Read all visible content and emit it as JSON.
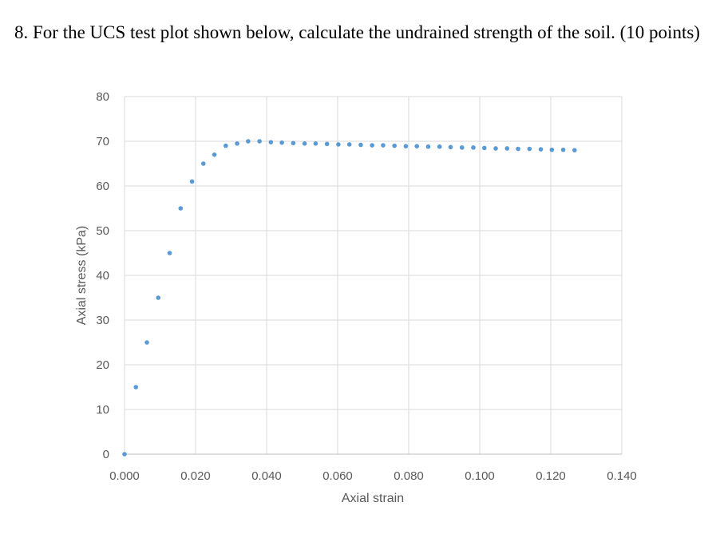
{
  "question": {
    "text": "8. For the UCS test plot shown below, calculate the undrained strength of the soil. (10 points)"
  },
  "chart_data": {
    "type": "scatter",
    "title": "",
    "xlabel": "Axial strain",
    "ylabel": "Axial stress (kPa)",
    "xlim": [
      0,
      0.14
    ],
    "ylim": [
      0,
      80
    ],
    "x_ticks": [
      "0.000",
      "0.020",
      "0.040",
      "0.060",
      "0.080",
      "0.100",
      "0.120",
      "0.140"
    ],
    "y_ticks": [
      "0",
      "10",
      "20",
      "30",
      "40",
      "50",
      "60",
      "70",
      "80"
    ],
    "grid": true,
    "legend": "none",
    "marker_color": "#5b9bd5",
    "gridline_color": "#d9d9d9",
    "series": [
      {
        "points": [
          [
            0.0,
            0
          ],
          [
            0.0032,
            15
          ],
          [
            0.0063,
            25
          ],
          [
            0.0095,
            35
          ],
          [
            0.0127,
            45
          ],
          [
            0.0158,
            55
          ],
          [
            0.019,
            61
          ],
          [
            0.0222,
            65
          ],
          [
            0.0253,
            67
          ],
          [
            0.0285,
            69
          ],
          [
            0.0317,
            69.5
          ],
          [
            0.0348,
            70
          ],
          [
            0.038,
            70
          ],
          [
            0.0412,
            69.8
          ],
          [
            0.0443,
            69.7
          ],
          [
            0.0475,
            69.6
          ],
          [
            0.0507,
            69.5
          ],
          [
            0.0538,
            69.5
          ],
          [
            0.057,
            69.4
          ],
          [
            0.0602,
            69.3
          ],
          [
            0.0633,
            69.3
          ],
          [
            0.0665,
            69.2
          ],
          [
            0.0697,
            69.1
          ],
          [
            0.0728,
            69.1
          ],
          [
            0.076,
            69.0
          ],
          [
            0.0792,
            68.9
          ],
          [
            0.0823,
            68.9
          ],
          [
            0.0855,
            68.8
          ],
          [
            0.0887,
            68.8
          ],
          [
            0.0918,
            68.7
          ],
          [
            0.095,
            68.6
          ],
          [
            0.0982,
            68.6
          ],
          [
            0.1013,
            68.5
          ],
          [
            0.1045,
            68.4
          ],
          [
            0.1077,
            68.4
          ],
          [
            0.1108,
            68.3
          ],
          [
            0.114,
            68.3
          ],
          [
            0.1172,
            68.2
          ],
          [
            0.1203,
            68.1
          ],
          [
            0.1235,
            68.1
          ],
          [
            0.1267,
            68.0
          ]
        ]
      }
    ]
  }
}
